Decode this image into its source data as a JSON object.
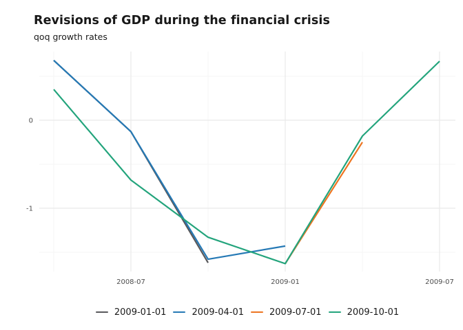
{
  "chart_data": {
    "type": "line",
    "title": "Revisions of GDP during the financial crisis",
    "subtitle": "qoq growth rates",
    "x_dates": [
      "2008-04",
      "2008-07",
      "2008-10",
      "2009-01",
      "2009-04",
      "2009-07"
    ],
    "x_major_ticks": [
      "2008-07",
      "2009-01",
      "2009-07"
    ],
    "x_minor_ticks": [
      "2008-04",
      "2008-10",
      "2009-04"
    ],
    "y_major_ticks": [
      0,
      -1
    ],
    "y_minor_ticks": [
      0.5,
      -0.5,
      -1.5
    ],
    "ylim": [
      -1.72,
      0.78
    ],
    "xlabel": "",
    "ylabel": "",
    "grid": "on",
    "legend_position": "bottom",
    "series": [
      {
        "name": "2009-01-01",
        "color": "#58585b",
        "x": [
          "2008-04",
          "2008-07",
          "2008-10"
        ],
        "values": [
          0.68,
          -0.13,
          -1.62
        ]
      },
      {
        "name": "2009-04-01",
        "color": "#2579b5",
        "x": [
          "2008-04",
          "2008-07",
          "2008-10",
          "2009-01"
        ],
        "values": [
          0.68,
          -0.13,
          -1.58,
          -1.43
        ]
      },
      {
        "name": "2009-07-01",
        "color": "#ed7420",
        "x": [
          "2009-01",
          "2009-04"
        ],
        "values": [
          -1.63,
          -0.25
        ]
      },
      {
        "name": "2009-10-01",
        "color": "#23a47c",
        "x": [
          "2008-04",
          "2008-07",
          "2008-10",
          "2009-01",
          "2009-04",
          "2009-07"
        ],
        "values": [
          0.35,
          -0.68,
          -1.33,
          -1.63,
          -0.18,
          0.67
        ]
      }
    ]
  },
  "colors": {
    "background": "#ffffff",
    "grid_major": "#e9e9e9",
    "grid_minor": "#f5f5f5",
    "tick_label": "#4d4d4d",
    "text": "#1a1a1a"
  }
}
